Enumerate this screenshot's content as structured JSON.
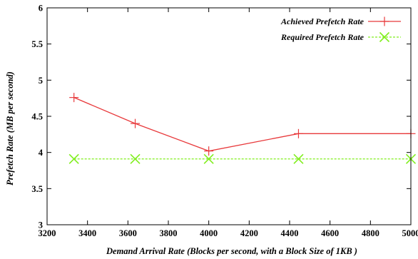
{
  "chart_data": {
    "type": "line",
    "xlabel": "Demand Arrival Rate (Blocks per second, with a Block Size of 1KB )",
    "ylabel": "Prefetch Rate (MB per second)",
    "xlim": [
      3200,
      5000
    ],
    "ylim": [
      3,
      6
    ],
    "x_ticks": [
      3200,
      3400,
      3600,
      3800,
      4000,
      4200,
      4400,
      4600,
      4800,
      5000
    ],
    "y_ticks": [
      3,
      3.5,
      4,
      4.5,
      5,
      5.5,
      6
    ],
    "grid": false,
    "legend_position": "top-right",
    "series": [
      {
        "name": "Achieved Prefetch Rate",
        "color": "#e8393b",
        "marker": "plus",
        "line_style": "solid",
        "x": [
          3333,
          3636,
          4000,
          4444,
          5000
        ],
        "y": [
          4.76,
          4.4,
          4.02,
          4.26,
          4.26
        ]
      },
      {
        "name": "Required Prefetch Rate",
        "color": "#80ee1e",
        "marker": "cross",
        "line_style": "dashed",
        "x": [
          3333,
          3636,
          4000,
          4444,
          5000
        ],
        "y": [
          3.91,
          3.91,
          3.91,
          3.91,
          3.91
        ]
      }
    ]
  }
}
